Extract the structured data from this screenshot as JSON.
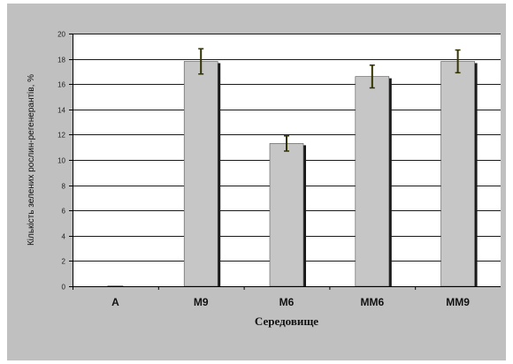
{
  "chart_data": {
    "type": "bar",
    "categories": [
      "A",
      "M9",
      "M6",
      "MM6",
      "MM9"
    ],
    "values": [
      0,
      17.8,
      11.3,
      16.6,
      17.8
    ],
    "errors": [
      0,
      1.0,
      0.6,
      0.9,
      0.9
    ],
    "xlabel": "Середовище",
    "ylabel": "Кількість зелених рослин-регенерантів, %",
    "ylim": [
      0,
      20
    ],
    "yticks": [
      0,
      2,
      4,
      6,
      8,
      10,
      12,
      14,
      16,
      18,
      20
    ],
    "grid": true,
    "legend": "none",
    "colors": {
      "background": "#c0c0c0",
      "plot_area": "#ffffff",
      "bar_fill": "#c6c6c6",
      "bar_shadow": "#1a1a1a",
      "error_bar": "#333300",
      "grid": "#1a1a1a"
    }
  }
}
